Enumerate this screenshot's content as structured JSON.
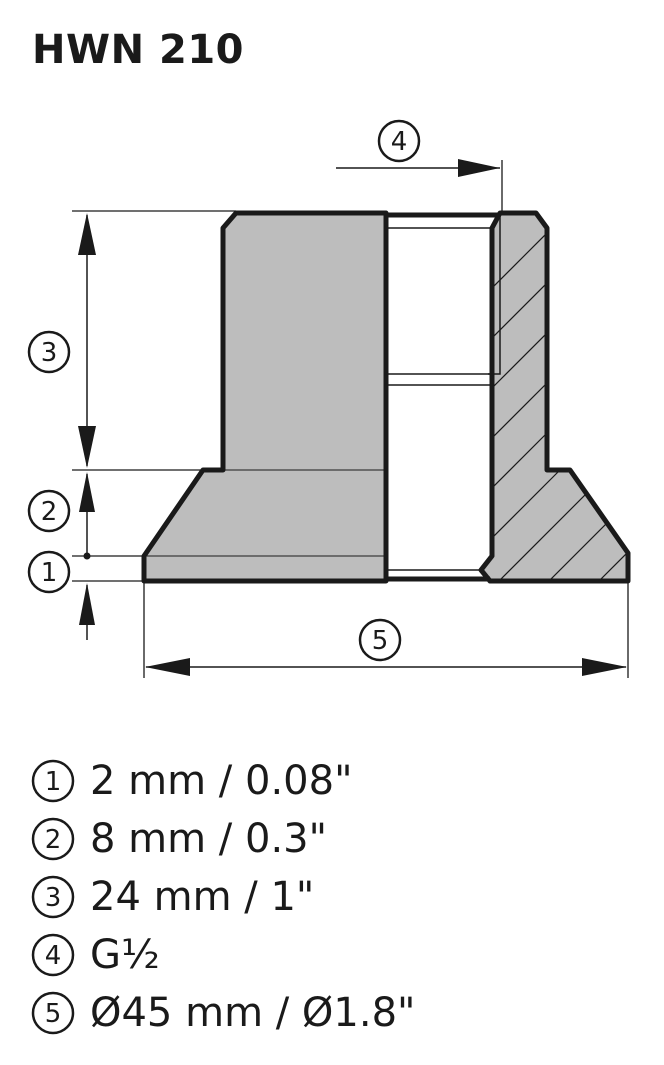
{
  "title": "HWN 210",
  "callouts": [
    "1",
    "2",
    "3",
    "4",
    "5"
  ],
  "legend": [
    {
      "marker": "1",
      "text": "2 mm / 0.08\""
    },
    {
      "marker": "2",
      "text": "8 mm / 0.3\""
    },
    {
      "marker": "3",
      "text": "24 mm / 1\""
    },
    {
      "marker": "4",
      "text": "G½"
    },
    {
      "marker": "5",
      "text": "Ø45 mm / Ø1.8\""
    }
  ],
  "colors": {
    "body_fill": "#bdbdbd",
    "outline": "#1a1a1a",
    "background": "#ffffff"
  }
}
